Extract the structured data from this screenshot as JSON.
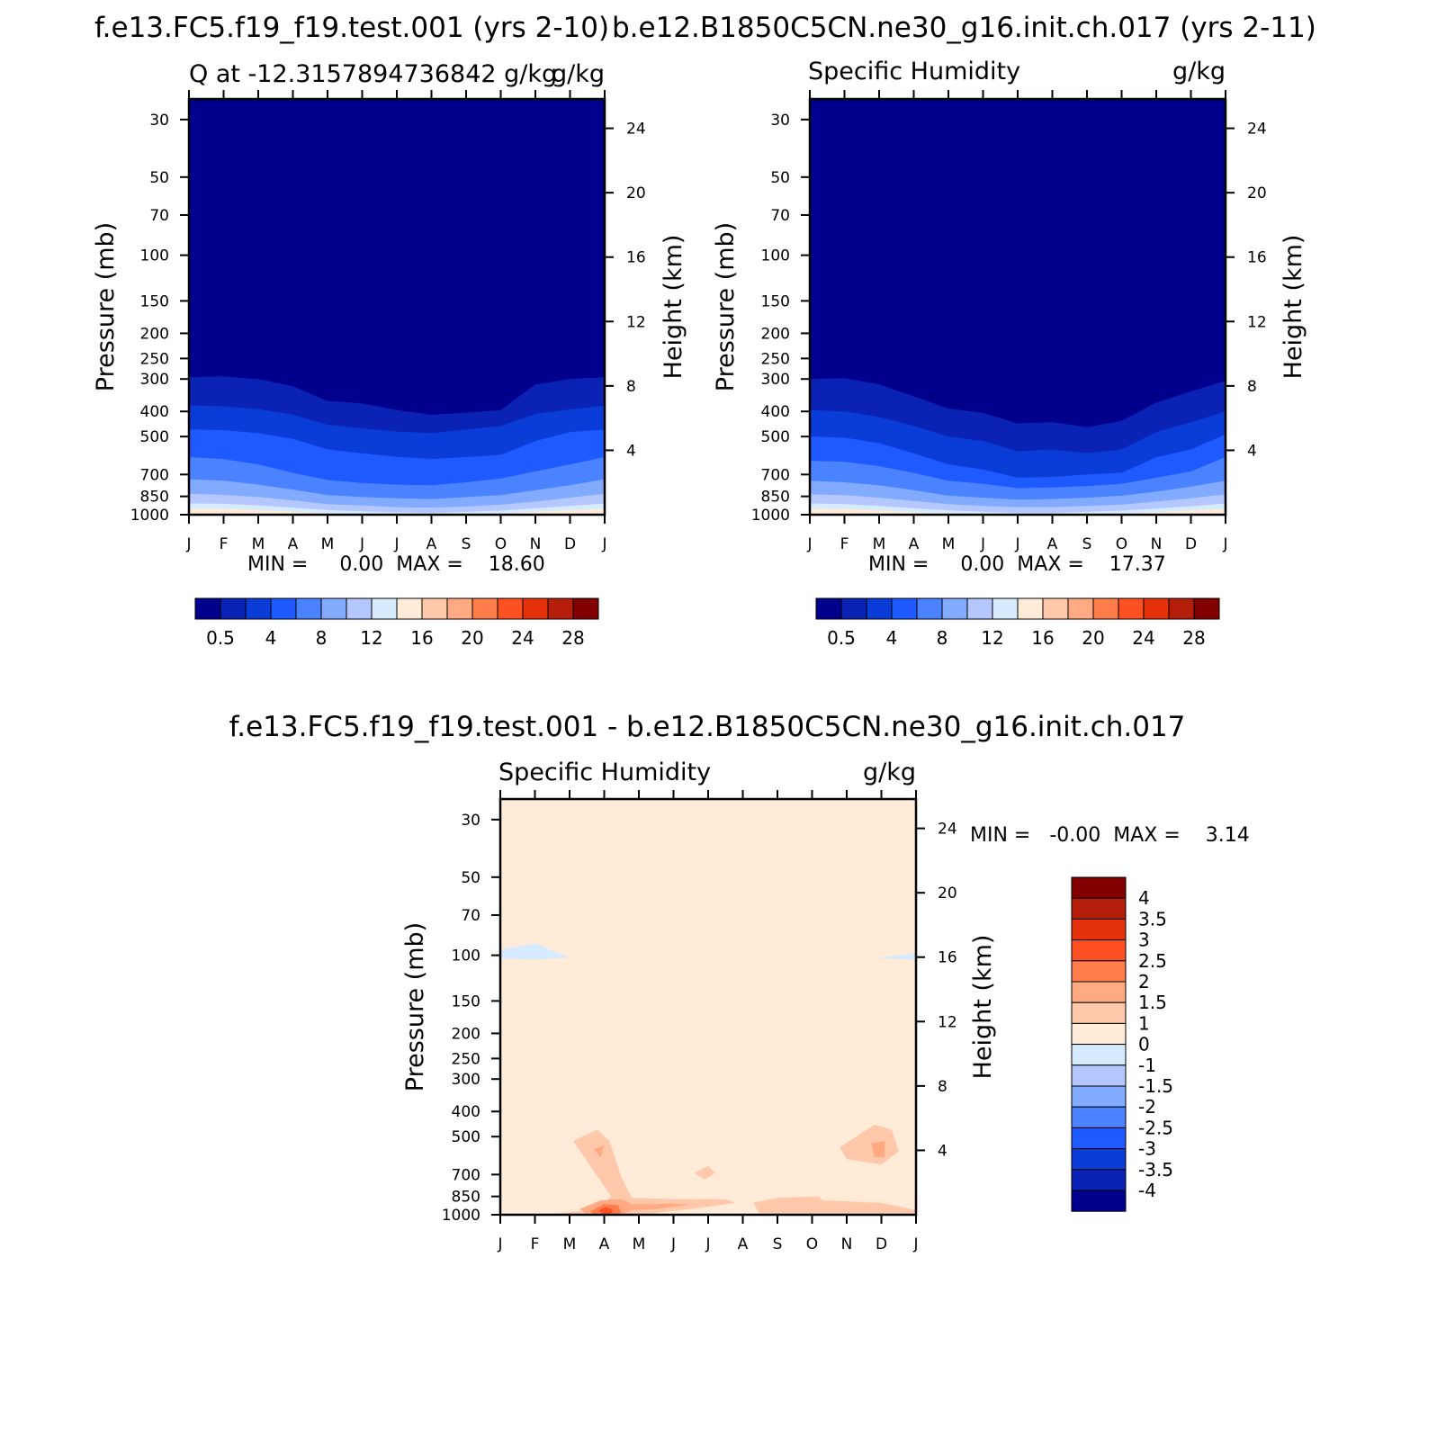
{
  "colors": {
    "seq_palette": [
      "#00008c",
      "#0a23b4",
      "#0a3cd7",
      "#1e5aff",
      "#4b82ff",
      "#82aaff",
      "#b4c8ff",
      "#d7ebff",
      "#ffebd7",
      "#ffc8aa",
      "#ffaa82",
      "#ff7d4b",
      "#ff5023",
      "#e6320a",
      "#b41e0a",
      "#820000"
    ],
    "diff_palette": [
      "#00008c",
      "#0a23b4",
      "#0a3cd7",
      "#1e5aff",
      "#4b82ff",
      "#82aaff",
      "#b4c8ff",
      "#d7ebff",
      "#ffebd7",
      "#ffc8aa",
      "#ffaa82",
      "#ff7d4b",
      "#ff5023",
      "#e6320a",
      "#b41e0a",
      "#820000"
    ]
  },
  "chart_data": [
    {
      "type": "heatmap",
      "title": "f.e13.FC5.f19_f19.test.001 (yrs 2-10)",
      "subtitle_left": "Q at -12.3157894736842 g/kg",
      "subtitle_right": "g/kg",
      "overlay_right": "g/kg",
      "ylabel": "Pressure (mb)",
      "y2label": "Height (km)",
      "x_ticks": [
        "J",
        "F",
        "M",
        "A",
        "M",
        "J",
        "J",
        "A",
        "S",
        "O",
        "N",
        "D",
        "J"
      ],
      "y_ticks": [
        "30",
        "50",
        "70",
        "100",
        "150",
        "200",
        "250",
        "300",
        "400",
        "500",
        "700",
        "850",
        "1000"
      ],
      "y_tick_values": [
        30,
        50,
        70,
        100,
        150,
        200,
        250,
        300,
        400,
        500,
        700,
        850,
        1000
      ],
      "y2_ticks": [
        "24",
        "20",
        "16",
        "12",
        "8",
        "4"
      ],
      "y2_tick_values": [
        24,
        20,
        16,
        12,
        8,
        4
      ],
      "ylim": [
        25,
        1000
      ],
      "minmax_text": "MIN =     0.00  MAX =    18.60",
      "contour_levels": [
        0.5,
        1,
        2,
        3,
        4,
        5,
        6,
        7,
        8,
        9,
        10,
        11,
        12,
        13,
        14,
        15,
        16,
        17,
        18,
        19,
        20,
        21,
        22,
        23,
        24,
        25,
        26,
        27,
        28,
        29,
        30
      ],
      "colorbar_labels": [
        "0.5",
        "4",
        "8",
        "12",
        "16",
        "20",
        "24",
        "28"
      ],
      "contour_interfaces_mb": [
        [
          295,
          293,
          300,
          320,
          365,
          372,
          395,
          412,
          405,
          395,
          315,
          300,
          295
        ],
        [
          380,
          382,
          392,
          412,
          450,
          465,
          478,
          485,
          470,
          455,
          410,
          393,
          380
        ],
        [
          470,
          472,
          485,
          510,
          560,
          580,
          598,
          610,
          600,
          588,
          520,
          480,
          470
        ],
        [
          600,
          610,
          640,
          690,
          735,
          755,
          765,
          770,
          750,
          725,
          680,
          640,
          600
        ],
        [
          730,
          740,
          765,
          800,
          840,
          855,
          865,
          870,
          855,
          840,
          805,
          770,
          730
        ],
        [
          830,
          838,
          855,
          880,
          910,
          922,
          935,
          940,
          930,
          915,
          890,
          860,
          830
        ],
        [
          905,
          908,
          920,
          940,
          960,
          970,
          980,
          985,
          975,
          965,
          945,
          925,
          905
        ],
        [
          950,
          950,
          960,
          975,
          990,
          1000,
          1000,
          1000,
          1000,
          990,
          975,
          960,
          950
        ]
      ]
    },
    {
      "type": "heatmap",
      "title": "b.e12.B1850C5CN.ne30_g16.init.ch.017 (yrs 2-11)",
      "subtitle_left": "Specific Humidity",
      "subtitle_right": "g/kg",
      "ylabel": "Pressure (mb)",
      "y2label": "Height (km)",
      "x_ticks": [
        "J",
        "F",
        "M",
        "A",
        "M",
        "J",
        "J",
        "A",
        "S",
        "O",
        "N",
        "D",
        "J"
      ],
      "y_ticks": [
        "30",
        "50",
        "70",
        "100",
        "150",
        "200",
        "250",
        "300",
        "400",
        "500",
        "700",
        "850",
        "1000"
      ],
      "y_tick_values": [
        30,
        50,
        70,
        100,
        150,
        200,
        250,
        300,
        400,
        500,
        700,
        850,
        1000
      ],
      "y2_ticks": [
        "24",
        "20",
        "16",
        "12",
        "8",
        "4"
      ],
      "y2_tick_values": [
        24,
        20,
        16,
        12,
        8,
        4
      ],
      "ylim": [
        25,
        1000
      ],
      "minmax_text": "MIN =     0.00  MAX =    17.37",
      "contour_levels": [
        0.5,
        1,
        2,
        3,
        4,
        5,
        6,
        7,
        8,
        9,
        10,
        11,
        12,
        13,
        14,
        15,
        16,
        17,
        18,
        19,
        20,
        21,
        22,
        23,
        24,
        25,
        26,
        27,
        28,
        29,
        30
      ],
      "colorbar_labels": [
        "0.5",
        "4",
        "8",
        "12",
        "16",
        "20",
        "24",
        "28"
      ],
      "contour_interfaces_mb": [
        [
          300,
          298,
          315,
          350,
          390,
          405,
          445,
          440,
          460,
          435,
          370,
          335,
          305
        ],
        [
          395,
          400,
          420,
          455,
          500,
          520,
          570,
          560,
          580,
          560,
          480,
          440,
          400
        ],
        [
          500,
          505,
          530,
          580,
          640,
          670,
          720,
          715,
          700,
          690,
          600,
          560,
          490
        ],
        [
          620,
          625,
          650,
          690,
          740,
          760,
          790,
          785,
          775,
          760,
          720,
          680,
          600
        ],
        [
          740,
          750,
          770,
          805,
          845,
          860,
          875,
          870,
          860,
          845,
          815,
          780,
          740
        ],
        [
          835,
          840,
          860,
          885,
          910,
          925,
          935,
          935,
          925,
          915,
          890,
          865,
          835
        ],
        [
          905,
          910,
          925,
          945,
          962,
          975,
          985,
          985,
          975,
          965,
          948,
          928,
          905
        ],
        [
          950,
          952,
          962,
          978,
          990,
          1000,
          1000,
          1000,
          1000,
          992,
          978,
          962,
          950
        ]
      ]
    },
    {
      "type": "heatmap",
      "title": "f.e13.FC5.f19_f19.test.001 - b.e12.B1850C5CN.ne30_g16.init.ch.017",
      "subtitle_left": "Specific Humidity",
      "subtitle_right": "g/kg",
      "ylabel": "Pressure (mb)",
      "y2label": "Height (km)",
      "x_ticks": [
        "J",
        "F",
        "M",
        "A",
        "M",
        "J",
        "J",
        "A",
        "S",
        "O",
        "N",
        "D",
        "J"
      ],
      "y_ticks": [
        "30",
        "50",
        "70",
        "100",
        "150",
        "200",
        "250",
        "300",
        "400",
        "500",
        "700",
        "850",
        "1000"
      ],
      "y_tick_values": [
        30,
        50,
        70,
        100,
        150,
        200,
        250,
        300,
        400,
        500,
        700,
        850,
        1000
      ],
      "y2_ticks": [
        "24",
        "20",
        "16",
        "12",
        "8",
        "4"
      ],
      "y2_tick_values": [
        24,
        20,
        16,
        12,
        8,
        4
      ],
      "ylim": [
        25,
        1000
      ],
      "minmax_text": "MIN =   -0.00  MAX =    3.14",
      "contour_levels": [
        -4,
        -3.5,
        -3,
        -2.5,
        -2,
        -1.5,
        -1,
        0,
        1,
        1.5,
        2,
        2.5,
        3,
        3.5,
        4
      ],
      "colorbar_labels": [
        "4",
        "3.5",
        "3",
        "2.5",
        "2",
        "1.5",
        "1",
        "0",
        "-1",
        "-1.5",
        "-2",
        "-2.5",
        "-3",
        "-3.5",
        "-4"
      ],
      "background_level": "0 to 1",
      "regions": [
        {
          "level": "-1 to 0",
          "points": [
            [
              0,
              95
            ],
            [
              1,
              90
            ],
            [
              2,
              102
            ],
            [
              1,
              104
            ],
            [
              0,
              103
            ]
          ]
        },
        {
          "level": "-1 to 0",
          "points": [
            [
              11,
              102
            ],
            [
              12,
              98
            ],
            [
              12,
              104
            ],
            [
              11,
              103
            ]
          ]
        },
        {
          "level": "1 to 1.5",
          "points": [
            [
              2.1,
              520
            ],
            [
              2.8,
              470
            ],
            [
              3.15,
              520
            ],
            [
              3.5,
              720
            ],
            [
              3.8,
              860
            ],
            [
              5,
              870
            ],
            [
              6.5,
              870
            ],
            [
              6.8,
              900
            ],
            [
              5.5,
              950
            ],
            [
              4,
              1000
            ],
            [
              2,
              1000
            ],
            [
              1.5,
              990
            ],
            [
              2.7,
              960
            ],
            [
              3,
              900
            ],
            [
              3.2,
              850
            ],
            [
              2.5,
              620
            ]
          ]
        },
        {
          "level": "1 to 1.5",
          "points": [
            [
              5.6,
              690
            ],
            [
              6,
              650
            ],
            [
              6.2,
              690
            ],
            [
              5.9,
              730
            ]
          ]
        },
        {
          "level": "1 to 1.5",
          "points": [
            [
              7.3,
              900
            ],
            [
              8,
              860
            ],
            [
              9.2,
              850
            ],
            [
              9.3,
              880
            ],
            [
              11,
              900
            ],
            [
              12,
              960
            ],
            [
              12,
              1000
            ],
            [
              7.5,
              1000
            ]
          ]
        },
        {
          "level": "1 to 1.5",
          "points": [
            [
              9.8,
              550
            ],
            [
              10.8,
              450
            ],
            [
              11.3,
              470
            ],
            [
              11.5,
              570
            ],
            [
              11,
              640
            ],
            [
              10,
              610
            ]
          ]
        },
        {
          "level": "1.5 to 2",
          "points": [
            [
              2.7,
              560
            ],
            [
              3,
              540
            ],
            [
              2.9,
              600
            ]
          ]
        },
        {
          "level": "1.5 to 2",
          "points": [
            [
              10.7,
              530
            ],
            [
              11.1,
              520
            ],
            [
              11.1,
              600
            ],
            [
              10.8,
              600
            ]
          ]
        },
        {
          "level": "1.5 to 2",
          "points": [
            [
              2.3,
              950
            ],
            [
              2.9,
              880
            ],
            [
              3.5,
              870
            ],
            [
              3.8,
              910
            ],
            [
              4.5,
              910
            ],
            [
              5,
              905
            ],
            [
              5.5,
              915
            ],
            [
              4.5,
              950
            ],
            [
              3.8,
              960
            ],
            [
              3.5,
              1000
            ],
            [
              2.5,
              1000
            ]
          ]
        },
        {
          "level": "2 to 2.5",
          "points": [
            [
              2.6,
              970
            ],
            [
              3,
              910
            ],
            [
              3.4,
              920
            ],
            [
              3.5,
              980
            ],
            [
              3.3,
              1000
            ],
            [
              2.7,
              1000
            ]
          ]
        },
        {
          "level": "2.5 to 3",
          "points": [
            [
              2.85,
              960
            ],
            [
              3.05,
              935
            ],
            [
              3.25,
              955
            ],
            [
              3.2,
              990
            ],
            [
              2.95,
              995
            ]
          ]
        }
      ]
    }
  ]
}
